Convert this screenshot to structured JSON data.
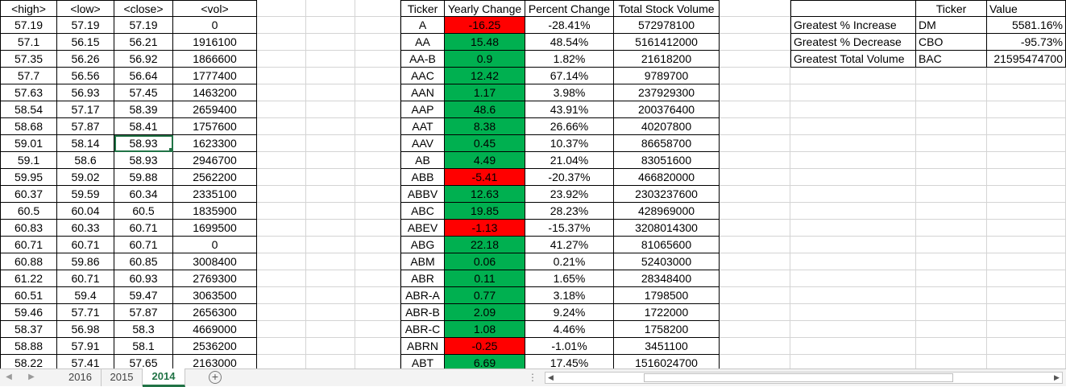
{
  "headers": {
    "high": "<high>",
    "low": "<low>",
    "close": "<close>",
    "vol": "<vol>",
    "ticker": "Ticker",
    "yearly_change": "Yearly Change",
    "percent_change": "Percent Change",
    "total_volume": "Total Stock Volume",
    "summary_ticker": "Ticker",
    "summary_value": "Value"
  },
  "raw_rows": [
    [
      "57.19",
      "57.19",
      "57.19",
      "0"
    ],
    [
      "57.1",
      "56.15",
      "56.21",
      "1916100"
    ],
    [
      "57.35",
      "56.26",
      "56.92",
      "1866600"
    ],
    [
      "57.7",
      "56.56",
      "56.64",
      "1777400"
    ],
    [
      "57.63",
      "56.93",
      "57.45",
      "1463200"
    ],
    [
      "58.54",
      "57.17",
      "58.39",
      "2659400"
    ],
    [
      "58.68",
      "57.87",
      "58.41",
      "1757600"
    ],
    [
      "59.01",
      "58.14",
      "58.93",
      "1623300"
    ],
    [
      "59.1",
      "58.6",
      "58.93",
      "2946700"
    ],
    [
      "59.95",
      "59.02",
      "59.88",
      "2562200"
    ],
    [
      "60.37",
      "59.59",
      "60.34",
      "2335100"
    ],
    [
      "60.5",
      "60.04",
      "60.5",
      "1835900"
    ],
    [
      "60.83",
      "60.33",
      "60.71",
      "1699500"
    ],
    [
      "60.71",
      "60.71",
      "60.71",
      "0"
    ],
    [
      "60.88",
      "59.86",
      "60.85",
      "3008400"
    ],
    [
      "61.22",
      "60.71",
      "60.93",
      "2769300"
    ],
    [
      "60.51",
      "59.4",
      "59.47",
      "3063500"
    ],
    [
      "59.46",
      "57.71",
      "57.87",
      "2656300"
    ],
    [
      "58.37",
      "56.98",
      "58.3",
      "4669000"
    ],
    [
      "58.88",
      "57.91",
      "58.1",
      "2536200"
    ],
    [
      "58.22",
      "57.41",
      "57.65",
      "2163000"
    ]
  ],
  "results": [
    {
      "ticker": "A",
      "change": "-16.25",
      "pct": "-28.41%",
      "volume": "572978100"
    },
    {
      "ticker": "AA",
      "change": "15.48",
      "pct": "48.54%",
      "volume": "5161412000"
    },
    {
      "ticker": "AA-B",
      "change": "0.9",
      "pct": "1.82%",
      "volume": "21618200"
    },
    {
      "ticker": "AAC",
      "change": "12.42",
      "pct": "67.14%",
      "volume": "9789700"
    },
    {
      "ticker": "AAN",
      "change": "1.17",
      "pct": "3.98%",
      "volume": "237929300"
    },
    {
      "ticker": "AAP",
      "change": "48.6",
      "pct": "43.91%",
      "volume": "200376400"
    },
    {
      "ticker": "AAT",
      "change": "8.38",
      "pct": "26.66%",
      "volume": "40207800"
    },
    {
      "ticker": "AAV",
      "change": "0.45",
      "pct": "10.37%",
      "volume": "86658700"
    },
    {
      "ticker": "AB",
      "change": "4.49",
      "pct": "21.04%",
      "volume": "83051600"
    },
    {
      "ticker": "ABB",
      "change": "-5.41",
      "pct": "-20.37%",
      "volume": "466820000"
    },
    {
      "ticker": "ABBV",
      "change": "12.63",
      "pct": "23.92%",
      "volume": "2303237600"
    },
    {
      "ticker": "ABC",
      "change": "19.85",
      "pct": "28.23%",
      "volume": "428969000"
    },
    {
      "ticker": "ABEV",
      "change": "-1.13",
      "pct": "-15.37%",
      "volume": "3208014300"
    },
    {
      "ticker": "ABG",
      "change": "22.18",
      "pct": "41.27%",
      "volume": "81065600"
    },
    {
      "ticker": "ABM",
      "change": "0.06",
      "pct": "0.21%",
      "volume": "52403000"
    },
    {
      "ticker": "ABR",
      "change": "0.11",
      "pct": "1.65%",
      "volume": "28348400"
    },
    {
      "ticker": "ABR-A",
      "change": "0.77",
      "pct": "3.18%",
      "volume": "1798500"
    },
    {
      "ticker": "ABR-B",
      "change": "2.09",
      "pct": "9.24%",
      "volume": "1722000"
    },
    {
      "ticker": "ABR-C",
      "change": "1.08",
      "pct": "4.46%",
      "volume": "1758200"
    },
    {
      "ticker": "ABRN",
      "change": "-0.25",
      "pct": "-1.01%",
      "volume": "3451100"
    },
    {
      "ticker": "ABT",
      "change": "6.69",
      "pct": "17.45%",
      "volume": "1516024700"
    }
  ],
  "summary": [
    {
      "label": "Greatest % Increase",
      "ticker": "DM",
      "value": "5581.16%"
    },
    {
      "label": "Greatest % Decrease",
      "ticker": "CBO",
      "value": "-95.73%"
    },
    {
      "label": "Greatest Total Volume",
      "ticker": "BAC",
      "value": "21595474700"
    }
  ],
  "tabs": [
    {
      "label": "2016",
      "active": false
    },
    {
      "label": "2015",
      "active": false
    },
    {
      "label": "2014",
      "active": true
    }
  ],
  "colors": {
    "positive_fill": "#00b050",
    "negative_fill": "#ff0000",
    "gridline": "#d4d4d4",
    "selection": "#217346"
  },
  "icons": {
    "prev_sheet": "triangle-left-icon",
    "next_sheet": "triangle-right-icon",
    "add_sheet": "plus-circle-icon",
    "scroll_left": "scroll-left-icon",
    "scroll_right": "scroll-right-icon"
  }
}
